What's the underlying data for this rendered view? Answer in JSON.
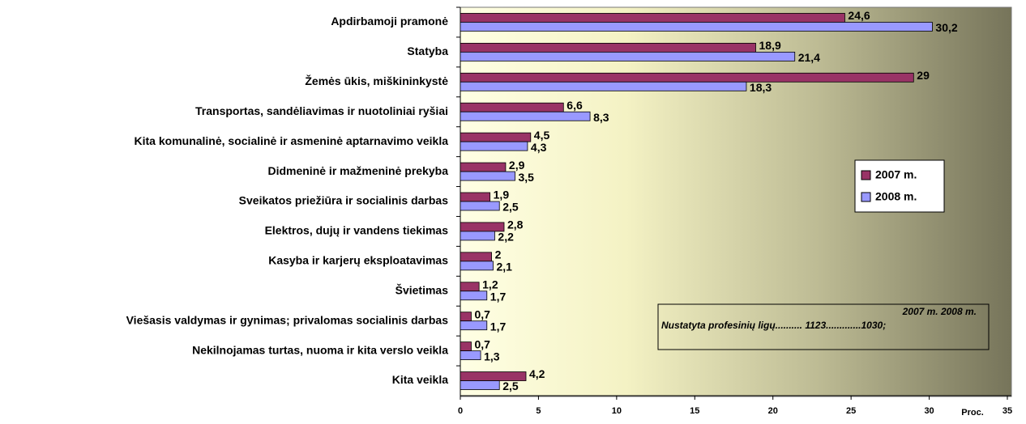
{
  "chart_data": {
    "type": "bar",
    "orientation": "horizontal",
    "categories": [
      "Apdirbamoji pramonė",
      "Statyba",
      "Žemės ūkis, miškininkystė",
      "Transportas, sandėliavimas ir nuotoliniai ryšiai",
      "Kita komunalinė, socialinė ir asmeninė aptarnavimo veikla",
      "Didmeninė ir mažmeninė prekyba",
      "Sveikatos priežiūra ir socialinis darbas",
      "Elektros, dujų ir vandens tiekimas",
      "Kasyba ir karjerų eksploatavimas",
      "Švietimas",
      "Viešasis valdymas ir gynimas; privalomas socialinis darbas",
      "Nekilnojamas turtas, nuoma ir kita verslo veikla",
      "Kita veikla"
    ],
    "series": [
      {
        "name": "2007 m.",
        "color": "#993366",
        "values": [
          24.6,
          18.9,
          29,
          6.6,
          4.5,
          2.9,
          1.9,
          2.8,
          2,
          1.2,
          0.7,
          0.7,
          4.2
        ],
        "value_labels": [
          "24,6",
          "18,9",
          "29",
          "6,6",
          "4,5",
          "2,9",
          "1,9",
          "2,8",
          "2",
          "1,2",
          "0,7",
          "0,7",
          "4,2"
        ]
      },
      {
        "name": "2008 m.",
        "color": "#9999ff",
        "values": [
          30.2,
          21.4,
          18.3,
          8.3,
          4.3,
          3.5,
          2.5,
          2.2,
          2.1,
          1.7,
          1.7,
          1.3,
          2.5
        ],
        "value_labels": [
          "30,2",
          "21,4",
          "18,3",
          "8,3",
          "4,3",
          "3,5",
          "2,5",
          "2,2",
          "2,1",
          "1,7",
          "1,7",
          "1,3",
          "2,5"
        ]
      }
    ],
    "xlim": [
      0,
      35
    ],
    "xticks": [
      0,
      5,
      10,
      15,
      20,
      25,
      30,
      35
    ],
    "x_label": "Proc.",
    "legend": "right",
    "annotation": {
      "header": "2007 m.        2008 m.",
      "text": "Nustatyta profesinių ligų.......... 1123.............1030;"
    }
  }
}
